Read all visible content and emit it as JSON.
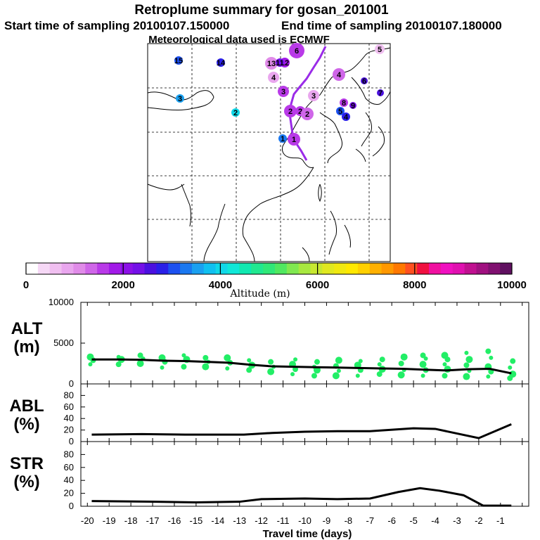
{
  "header": {
    "title": "Retroplume summary for gosan_201001",
    "start_label": "Start time of sampling 20100107.150000",
    "end_label": "End time of sampling 20100107.180000",
    "met_label": "Meteorological data used is ECMWF"
  },
  "colorbar": {
    "title": "Altitude (m)",
    "tick_labels": [
      "0",
      "2000",
      "4000",
      "6000",
      "8000",
      "10000"
    ],
    "colors": [
      "#ffffff",
      "#f6d8f6",
      "#f0bff0",
      "#e9a6ee",
      "#e08be8",
      "#cf66e8",
      "#b93ae8",
      "#a21ae8",
      "#8c10e8",
      "#7410e8",
      "#4b10e0",
      "#2a1fe8",
      "#1c50f0",
      "#1a78f0",
      "#1aa0f0",
      "#10c0f0",
      "#10d8e8",
      "#10e8d8",
      "#10e8b0",
      "#20e890",
      "#30e878",
      "#50e860",
      "#80e850",
      "#a8e840",
      "#c8e830",
      "#e0e820",
      "#f0e810",
      "#ffe800",
      "#ffd000",
      "#ffb000",
      "#ff9800",
      "#ff7800",
      "#ff5020",
      "#f01040",
      "#f010a0",
      "#f010c0",
      "#e010b0",
      "#c01090",
      "#a01080",
      "#801070",
      "#601060"
    ]
  },
  "map": {
    "markers": [
      {
        "label": "15",
        "alt": 3000
      },
      {
        "label": "14",
        "alt": 2800
      },
      {
        "label": "13",
        "alt": 1200
      },
      {
        "label": "12",
        "alt": 1800
      },
      {
        "label": "11",
        "alt": 2200
      },
      {
        "label": "6",
        "alt": 1700
      },
      {
        "label": "5",
        "alt": 500
      },
      {
        "label": "4",
        "alt": 800
      },
      {
        "label": "4",
        "alt": 1400
      },
      {
        "label": "3",
        "alt": 3500
      },
      {
        "label": "3",
        "alt": 1500
      },
      {
        "label": "3",
        "alt": 900
      },
      {
        "label": "2",
        "alt": 4000
      },
      {
        "label": "2",
        "alt": 1600
      },
      {
        "label": "2",
        "alt": 1500
      },
      {
        "label": "2",
        "alt": 1300
      },
      {
        "label": "7",
        "alt": 2600
      },
      {
        "label": "6",
        "alt": 2500
      },
      {
        "label": "5",
        "alt": 3000
      },
      {
        "label": "4",
        "alt": 2800
      },
      {
        "label": "8",
        "alt": 1700
      },
      {
        "label": "9",
        "alt": 2400
      },
      {
        "label": "1",
        "alt": 1600
      },
      {
        "label": "1",
        "alt": 3200
      }
    ]
  },
  "chart_data": [
    {
      "type": "scatter+line",
      "panel_label": "ALT",
      "panel_unit": "(m)",
      "ylim": [
        0,
        10000
      ],
      "yticks": [
        "10000",
        "5000",
        "0"
      ],
      "x": [
        -19.8,
        -18.5,
        -17.5,
        -16.5,
        -15.5,
        -14.5,
        -13.5,
        -12.5,
        -11.5,
        -10.5,
        -9.5,
        -8.5,
        -7.5,
        -6.5,
        -5.5,
        -4.5,
        -3.5,
        -2.5,
        -1.5,
        -0.5
      ],
      "median_altitude": [
        3000,
        3000,
        2950,
        2850,
        2800,
        2700,
        2600,
        2350,
        2150,
        2100,
        2050,
        2000,
        1950,
        1900,
        1850,
        1750,
        1650,
        1800,
        1850,
        1300
      ],
      "cluster_altitudes": [
        [
          2400,
          2900,
          3300
        ],
        [
          2400,
          3000,
          3300
        ],
        [
          2500,
          3100,
          3500
        ],
        [
          2000,
          2700,
          3200
        ],
        [
          2100,
          3000,
          3500
        ],
        [
          2100,
          2700,
          3200
        ],
        [
          1900,
          2600,
          3200
        ],
        [
          1700,
          2300,
          2900
        ],
        [
          1500,
          2100,
          2700
        ],
        [
          1200,
          1800,
          2400,
          3000
        ],
        [
          1000,
          1700,
          2100,
          2700
        ],
        [
          1000,
          1600,
          2200,
          2900
        ],
        [
          1000,
          1700,
          2300,
          2800
        ],
        [
          1200,
          1800,
          2400,
          3000
        ],
        [
          1100,
          1700,
          2500,
          3300
        ],
        [
          1000,
          1700,
          2400,
          3100,
          3500
        ],
        [
          1000,
          1800,
          2400,
          3000,
          3500
        ],
        [
          900,
          1600,
          2300,
          3000,
          3800
        ],
        [
          900,
          1500,
          2100,
          3200,
          4000
        ],
        [
          700,
          1200,
          2000,
          2800
        ]
      ]
    },
    {
      "type": "line",
      "panel_label": "ABL",
      "panel_unit": "(%)",
      "ylim": [
        0,
        100
      ],
      "yticks": [
        "80",
        "60",
        "40",
        "20",
        "0"
      ],
      "x": [
        -19.8,
        -17.5,
        -15.5,
        -12.8,
        -11.5,
        -10,
        -8.5,
        -7,
        -5,
        -4,
        -2,
        -0.5
      ],
      "values": [
        12,
        13,
        12,
        12,
        15,
        17,
        18,
        18,
        23,
        22,
        6,
        30
      ]
    },
    {
      "type": "line",
      "panel_label": "STR",
      "panel_unit": "(%)",
      "ylim": [
        0,
        100
      ],
      "yticks": [
        "80",
        "60",
        "40",
        "20",
        "0"
      ],
      "x": [
        -19.8,
        -17,
        -15,
        -13,
        -12,
        -10,
        -8.5,
        -7,
        -5.7,
        -4.7,
        -3.8,
        -2.7,
        -1.8,
        -0.5
      ],
      "values": [
        8,
        7,
        6,
        7,
        11,
        12,
        11,
        12,
        22,
        28,
        24,
        17,
        1,
        1
      ]
    }
  ],
  "xaxis": {
    "label": "Travel time (days)",
    "tick_labels": [
      "-20",
      "-19",
      "-18",
      "-17",
      "-16",
      "-15",
      "-14",
      "-13",
      "-12",
      "-11",
      "-10",
      "-9",
      "-8",
      "-7",
      "-6",
      "-5",
      "-4",
      "-3",
      "-2",
      "-1"
    ]
  }
}
